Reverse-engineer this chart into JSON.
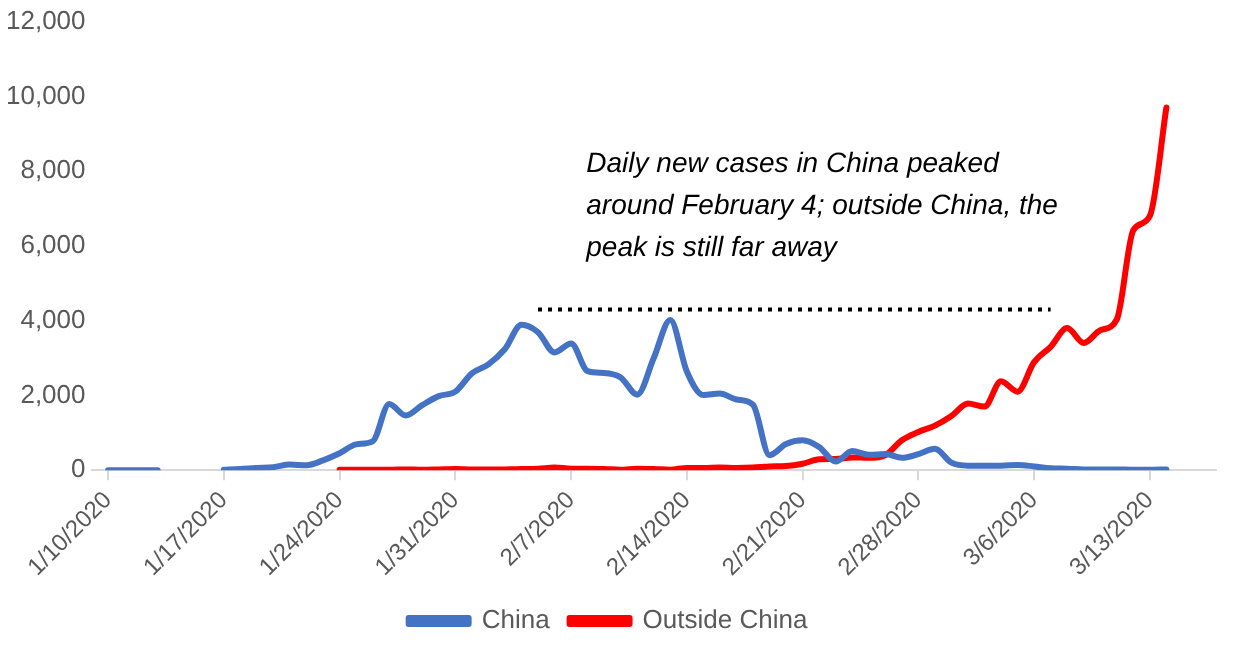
{
  "chart_data": {
    "type": "line",
    "marker": "none",
    "legend": "bottom",
    "grid": false,
    "xlim": [
      "2020-01-09",
      "2020-03-17"
    ],
    "xticks": [
      {
        "value": "2020-01-10",
        "label": "1/10/2020"
      },
      {
        "value": "2020-01-17",
        "label": "1/17/2020"
      },
      {
        "value": "2020-01-24",
        "label": "1/24/2020"
      },
      {
        "value": "2020-01-31",
        "label": "1/31/2020"
      },
      {
        "value": "2020-02-07",
        "label": "2/7/2020"
      },
      {
        "value": "2020-02-14",
        "label": "2/14/2020"
      },
      {
        "value": "2020-02-21",
        "label": "2/21/2020"
      },
      {
        "value": "2020-02-28",
        "label": "2/28/2020"
      },
      {
        "value": "2020-03-06",
        "label": "3/6/2020"
      },
      {
        "value": "2020-03-13",
        "label": "3/13/2020"
      }
    ],
    "ylim": [
      0,
      12000
    ],
    "yticks": [
      {
        "value": 0,
        "label": "0"
      },
      {
        "value": 2000,
        "label": "2,000"
      },
      {
        "value": 4000,
        "label": "4,000"
      },
      {
        "value": 6000,
        "label": "6,000"
      },
      {
        "value": 8000,
        "label": "8,000"
      },
      {
        "value": 10000,
        "label": "10,000"
      },
      {
        "value": 12000,
        "label": "12,000"
      }
    ],
    "annotations": [
      "Daily new cases in China peaked around February 4; outside China, the peak is still far away"
    ],
    "series": [
      {
        "name": "China",
        "color": "#4472c4",
        "x": [
          "2020-01-10",
          "2020-01-11",
          "2020-01-12",
          "2020-01-13",
          "2020-01-14",
          "2020-01-15",
          "2020-01-16",
          "2020-01-17",
          "2020-01-18",
          "2020-01-19",
          "2020-01-20",
          "2020-01-21",
          "2020-01-22",
          "2020-01-23",
          "2020-01-24",
          "2020-01-25",
          "2020-01-26",
          "2020-01-27",
          "2020-01-28",
          "2020-01-29",
          "2020-01-30",
          "2020-01-31",
          "2020-02-01",
          "2020-02-02",
          "2020-02-03",
          "2020-02-04",
          "2020-02-05",
          "2020-02-06",
          "2020-02-07",
          "2020-02-08",
          "2020-02-09",
          "2020-02-10",
          "2020-02-11",
          "2020-02-12",
          "2020-02-13",
          "2020-02-14",
          "2020-02-15",
          "2020-02-16",
          "2020-02-17",
          "2020-02-18",
          "2020-02-19",
          "2020-02-20",
          "2020-02-21",
          "2020-02-22",
          "2020-02-23",
          "2020-02-24",
          "2020-02-25",
          "2020-02-26",
          "2020-02-27",
          "2020-02-28",
          "2020-02-29",
          "2020-03-01",
          "2020-03-02",
          "2020-03-03",
          "2020-03-04",
          "2020-03-05",
          "2020-03-06",
          "2020-03-07",
          "2020-03-08",
          "2020-03-09",
          "2020-03-10",
          "2020-03-11",
          "2020-03-12",
          "2020-03-13",
          "2020-03-14"
        ],
        "values": [
          0,
          0,
          0,
          0,
          null,
          null,
          null,
          10,
          30,
          60,
          80,
          150,
          130,
          260,
          450,
          690,
          770,
          1770,
          1460,
          1740,
          1980,
          2100,
          2590,
          2830,
          3240,
          3890,
          3690,
          3150,
          3390,
          2650,
          2600,
          2480,
          2020,
          3000,
          4020,
          2640,
          2010,
          2050,
          1890,
          1750,
          400,
          700,
          800,
          620,
          230,
          510,
          410,
          430,
          330,
          430,
          570,
          200,
          120,
          120,
          120,
          140,
          100,
          50,
          40,
          20,
          20,
          20,
          10,
          10,
          20
        ]
      },
      {
        "name": "Outside China",
        "color": "#ff0000",
        "x": [
          "2020-01-24",
          "2020-01-25",
          "2020-01-26",
          "2020-01-27",
          "2020-01-28",
          "2020-01-29",
          "2020-01-30",
          "2020-01-31",
          "2020-02-01",
          "2020-02-02",
          "2020-02-03",
          "2020-02-04",
          "2020-02-05",
          "2020-02-06",
          "2020-02-07",
          "2020-02-08",
          "2020-02-09",
          "2020-02-10",
          "2020-02-11",
          "2020-02-12",
          "2020-02-13",
          "2020-02-14",
          "2020-02-15",
          "2020-02-16",
          "2020-02-17",
          "2020-02-18",
          "2020-02-19",
          "2020-02-20",
          "2020-02-21",
          "2020-02-22",
          "2020-02-23",
          "2020-02-24",
          "2020-02-25",
          "2020-02-26",
          "2020-02-27",
          "2020-02-28",
          "2020-02-29",
          "2020-03-01",
          "2020-03-02",
          "2020-03-03",
          "2020-03-04",
          "2020-03-05",
          "2020-03-06",
          "2020-03-07",
          "2020-03-08",
          "2020-03-09",
          "2020-03-10",
          "2020-03-11",
          "2020-03-12",
          "2020-03-13",
          "2020-03-14"
        ],
        "values": [
          10,
          10,
          10,
          10,
          20,
          10,
          20,
          30,
          20,
          20,
          20,
          30,
          40,
          70,
          40,
          40,
          30,
          10,
          40,
          30,
          10,
          60,
          60,
          70,
          60,
          70,
          100,
          110,
          170,
          290,
          300,
          340,
          330,
          400,
          800,
          1020,
          1190,
          1450,
          1780,
          1700,
          2380,
          2100,
          2890,
          3300,
          3800,
          3400,
          3740,
          4030,
          6420,
          6800,
          9700
        ]
      },
      {
        "color": "#000000",
        "line_style": "dotted",
        "x": [
          "2020-02-05",
          "2020-03-07"
        ],
        "values": [
          4300,
          4300
        ]
      }
    ]
  }
}
